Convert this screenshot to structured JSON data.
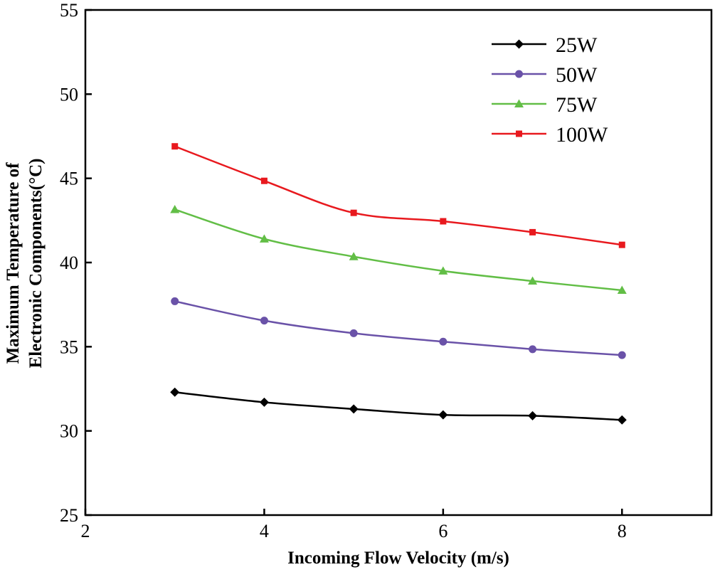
{
  "chart_data": {
    "type": "line",
    "title": "",
    "xlabel": "Incoming Flow Velocity (m/s)",
    "ylabel_lines": [
      "Maximum Temperature of",
      "Electronic Components(°C)"
    ],
    "xlim": [
      2,
      9
    ],
    "ylim": [
      25,
      55
    ],
    "xticks": [
      2,
      4,
      6,
      8
    ],
    "yticks": [
      25,
      30,
      35,
      40,
      45,
      50,
      55
    ],
    "x": [
      3,
      4,
      5,
      6,
      7,
      8
    ],
    "legend_position": "top-right",
    "grid": false,
    "series": [
      {
        "name": "25W",
        "color": "#000000",
        "marker": "diamond",
        "values": [
          32.3,
          31.7,
          31.3,
          30.95,
          30.9,
          30.65
        ]
      },
      {
        "name": "50W",
        "color": "#6a52a8",
        "marker": "circle",
        "values": [
          37.7,
          36.55,
          35.8,
          35.3,
          34.85,
          34.5
        ]
      },
      {
        "name": "75W",
        "color": "#62be46",
        "marker": "triangle",
        "values": [
          43.15,
          41.4,
          40.35,
          39.5,
          38.9,
          38.35
        ]
      },
      {
        "name": "100W",
        "color": "#e8191e",
        "marker": "square",
        "values": [
          46.9,
          44.85,
          42.95,
          42.45,
          41.8,
          41.05
        ]
      }
    ]
  }
}
